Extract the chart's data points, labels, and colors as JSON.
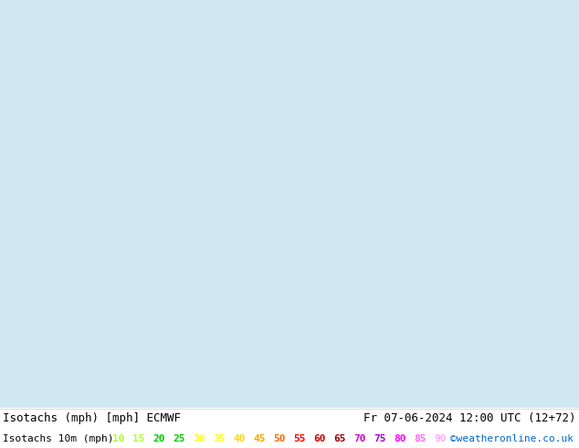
{
  "title_left": "Isotachs (mph) [mph] ECMWF",
  "title_right": "Fr 07-06-2024 12:00 UTC (12+72)",
  "legend_label": "Isotachs 10m (mph)",
  "copyright": "©weatheronline.co.uk",
  "legend_values": [
    10,
    15,
    20,
    25,
    30,
    35,
    40,
    45,
    50,
    55,
    60,
    65,
    70,
    75,
    80,
    85,
    90
  ],
  "legend_colors": [
    "#adff2f",
    "#adff2f",
    "#00cc00",
    "#00cc00",
    "#ffff00",
    "#ffff00",
    "#ffd700",
    "#ffa500",
    "#ff6600",
    "#ff0000",
    "#cc0000",
    "#990000",
    "#cc00cc",
    "#9900cc",
    "#ff00ff",
    "#ff66ff",
    "#ffaaff"
  ],
  "bg_color": "#ffffff",
  "map_bg": "#d0e8f0",
  "bottom_bar_color": "#ffffff",
  "title_fontsize": 9,
  "legend_fontsize": 8
}
